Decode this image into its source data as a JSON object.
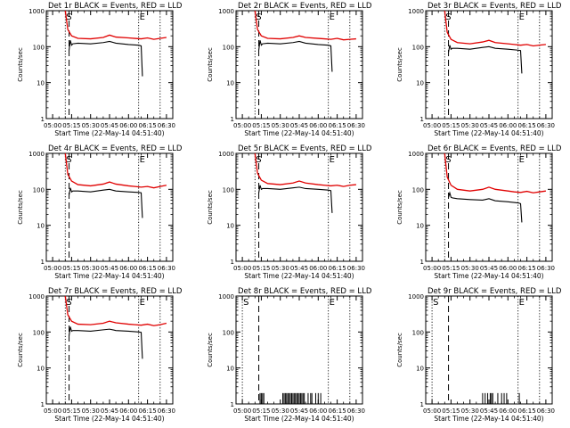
{
  "colors": {
    "events": "#000000",
    "lld": "#e00000",
    "frame": "#000000"
  },
  "shared": {
    "ylabel": "Counts/sec",
    "xlabel": "Start Time (22-May-14 04:51:40)",
    "xticks": [
      "05:00",
      "05:15",
      "05:30",
      "05:45",
      "06:00",
      "06:15",
      "06:30"
    ],
    "yticks": [
      "1",
      "10",
      "100",
      "1000"
    ],
    "start_marker": "S",
    "end_marker": "E",
    "y_scale": "log",
    "ylim": [
      1,
      1000
    ]
  },
  "chart_data": [
    {
      "type": "line",
      "title": "Det 1r BLACK = Events, RED = LLD",
      "mode": "curve",
      "x_range": [
        "04:55",
        "06:35"
      ],
      "markers": {
        "start": "05:10",
        "dash": "05:13",
        "end": "06:08",
        "end_line": "06:25"
      },
      "series": [
        {
          "label": "LLD",
          "color": "#e00000",
          "x": [
            "05:10",
            "05:12",
            "05:15",
            "05:20",
            "05:30",
            "05:40",
            "05:45",
            "05:50",
            "06:00",
            "06:05",
            "06:10",
            "06:15",
            "06:20",
            "06:25",
            "06:30"
          ],
          "y": [
            1000,
            300,
            200,
            170,
            165,
            180,
            210,
            185,
            175,
            170,
            165,
            175,
            160,
            170,
            180
          ]
        },
        {
          "label": "Events",
          "color": "#000000",
          "x": [
            "05:13",
            "05:14",
            "05:15",
            "05:16",
            "05:20",
            "05:30",
            "05:40",
            "05:45",
            "05:50",
            "06:00",
            "06:08",
            "06:10",
            "06:11"
          ],
          "y": [
            80,
            150,
            110,
            120,
            125,
            120,
            130,
            140,
            125,
            115,
            110,
            105,
            15
          ]
        }
      ]
    },
    {
      "type": "line",
      "title": "Det 2r BLACK = Events, RED = LLD",
      "mode": "curve",
      "x_range": [
        "04:55",
        "06:35"
      ],
      "markers": {
        "start": "05:10",
        "dash": "05:13",
        "end": "06:08",
        "end_line": "06:25"
      },
      "series": [
        {
          "label": "LLD",
          "color": "#e00000",
          "x": [
            "05:10",
            "05:12",
            "05:15",
            "05:20",
            "05:30",
            "05:40",
            "05:45",
            "05:50",
            "06:00",
            "06:05",
            "06:10",
            "06:15",
            "06:20",
            "06:25",
            "06:30"
          ],
          "y": [
            1000,
            300,
            200,
            170,
            165,
            180,
            200,
            180,
            170,
            165,
            160,
            170,
            155,
            160,
            165
          ]
        },
        {
          "label": "Events",
          "color": "#000000",
          "x": [
            "05:13",
            "05:14",
            "05:15",
            "05:16",
            "05:20",
            "05:30",
            "05:40",
            "05:45",
            "05:50",
            "06:00",
            "06:08",
            "06:10",
            "06:11"
          ],
          "y": [
            80,
            150,
            110,
            120,
            125,
            120,
            130,
            140,
            125,
            115,
            110,
            105,
            20
          ]
        }
      ]
    },
    {
      "type": "line",
      "title": "Det 3r BLACK = Events, RED = LLD",
      "mode": "curve",
      "x_range": [
        "04:55",
        "06:35"
      ],
      "markers": {
        "start": "05:10",
        "dash": "05:13",
        "end": "06:08",
        "end_line": "06:25"
      },
      "series": [
        {
          "label": "LLD",
          "color": "#e00000",
          "x": [
            "05:10",
            "05:12",
            "05:15",
            "05:20",
            "05:30",
            "05:40",
            "05:45",
            "05:50",
            "06:00",
            "06:05",
            "06:10",
            "06:15",
            "06:20",
            "06:25",
            "06:30"
          ],
          "y": [
            1000,
            250,
            160,
            130,
            120,
            135,
            150,
            130,
            120,
            115,
            110,
            115,
            105,
            110,
            115
          ]
        },
        {
          "label": "Events",
          "color": "#000000",
          "x": [
            "05:13",
            "05:14",
            "05:15",
            "05:16",
            "05:20",
            "05:30",
            "05:40",
            "05:45",
            "05:50",
            "06:00",
            "06:08",
            "06:10",
            "06:11"
          ],
          "y": [
            70,
            110,
            85,
            90,
            90,
            85,
            95,
            100,
            90,
            85,
            80,
            78,
            18
          ]
        }
      ]
    },
    {
      "type": "line",
      "title": "Det 4r BLACK = Events, RED = LLD",
      "mode": "curve",
      "x_range": [
        "04:55",
        "06:35"
      ],
      "markers": {
        "start": "05:10",
        "dash": "05:13",
        "end": "06:08",
        "end_line": "06:25"
      },
      "series": [
        {
          "label": "LLD",
          "color": "#e00000",
          "x": [
            "05:10",
            "05:12",
            "05:15",
            "05:20",
            "05:30",
            "05:40",
            "05:45",
            "05:50",
            "06:00",
            "06:05",
            "06:10",
            "06:15",
            "06:20",
            "06:25",
            "06:30"
          ],
          "y": [
            1000,
            260,
            170,
            135,
            125,
            140,
            160,
            140,
            125,
            120,
            115,
            120,
            110,
            120,
            130
          ]
        },
        {
          "label": "Events",
          "color": "#000000",
          "x": [
            "05:13",
            "05:14",
            "05:15",
            "05:16",
            "05:20",
            "05:30",
            "05:40",
            "05:45",
            "05:50",
            "06:00",
            "06:08",
            "06:10",
            "06:11"
          ],
          "y": [
            70,
            110,
            85,
            90,
            90,
            85,
            95,
            100,
            90,
            85,
            82,
            80,
            16
          ]
        }
      ]
    },
    {
      "type": "line",
      "title": "Det 5r BLACK = Events, RED = LLD",
      "mode": "curve",
      "x_range": [
        "04:55",
        "06:35"
      ],
      "markers": {
        "start": "05:10",
        "dash": "05:13",
        "end": "06:08",
        "end_line": "06:25"
      },
      "series": [
        {
          "label": "LLD",
          "color": "#e00000",
          "x": [
            "05:10",
            "05:12",
            "05:15",
            "05:20",
            "05:30",
            "05:40",
            "05:45",
            "05:50",
            "06:00",
            "06:05",
            "06:10",
            "06:15",
            "06:20",
            "06:25",
            "06:30"
          ],
          "y": [
            1000,
            280,
            180,
            145,
            135,
            150,
            170,
            150,
            135,
            130,
            125,
            130,
            120,
            130,
            135
          ]
        },
        {
          "label": "Events",
          "color": "#000000",
          "x": [
            "05:13",
            "05:14",
            "05:15",
            "05:16",
            "05:20",
            "05:30",
            "05:40",
            "05:45",
            "05:50",
            "06:00",
            "06:08",
            "06:10",
            "06:11"
          ],
          "y": [
            80,
            130,
            100,
            105,
            105,
            100,
            110,
            115,
            105,
            100,
            95,
            92,
            22
          ]
        }
      ]
    },
    {
      "type": "line",
      "title": "Det 6r BLACK = Events, RED = LLD",
      "mode": "curve",
      "x_range": [
        "04:55",
        "06:35"
      ],
      "markers": {
        "start": "05:10",
        "dash": "05:13",
        "end": "06:08",
        "end_line": "06:25"
      },
      "series": [
        {
          "label": "LLD",
          "color": "#e00000",
          "x": [
            "05:10",
            "05:12",
            "05:15",
            "05:20",
            "05:30",
            "05:40",
            "05:45",
            "05:50",
            "06:00",
            "06:05",
            "06:10",
            "06:15",
            "06:20",
            "06:25",
            "06:30"
          ],
          "y": [
            1000,
            220,
            130,
            100,
            90,
            100,
            115,
            100,
            90,
            85,
            82,
            88,
            80,
            85,
            90
          ]
        },
        {
          "label": "Events",
          "color": "#000000",
          "x": [
            "05:13",
            "05:14",
            "05:15",
            "05:16",
            "05:20",
            "05:30",
            "05:40",
            "05:45",
            "05:50",
            "06:00",
            "06:08",
            "06:10",
            "06:11"
          ],
          "y": [
            60,
            80,
            60,
            58,
            55,
            52,
            50,
            55,
            48,
            45,
            42,
            40,
            12
          ]
        }
      ]
    },
    {
      "type": "line",
      "title": "Det 7r BLACK = Events, RED = LLD",
      "mode": "curve",
      "x_range": [
        "04:55",
        "06:35"
      ],
      "markers": {
        "start": "05:10",
        "dash": "05:13",
        "end": "06:08",
        "end_line": "06:25"
      },
      "series": [
        {
          "label": "LLD",
          "color": "#e00000",
          "x": [
            "05:10",
            "05:12",
            "05:15",
            "05:20",
            "05:30",
            "05:40",
            "05:45",
            "05:50",
            "06:00",
            "06:05",
            "06:10",
            "06:15",
            "06:20",
            "06:25",
            "06:30"
          ],
          "y": [
            1000,
            300,
            200,
            165,
            160,
            175,
            200,
            180,
            165,
            160,
            155,
            165,
            150,
            160,
            175
          ]
        },
        {
          "label": "Events",
          "color": "#000000",
          "x": [
            "05:13",
            "05:14",
            "05:15",
            "05:16",
            "05:20",
            "05:30",
            "05:40",
            "05:45",
            "05:50",
            "06:00",
            "06:08",
            "06:10",
            "06:11"
          ],
          "y": [
            80,
            140,
            105,
            110,
            110,
            105,
            115,
            120,
            110,
            105,
            100,
            98,
            18
          ]
        }
      ]
    },
    {
      "type": "line",
      "title": "Det 8r BLACK = Events, RED = LLD",
      "mode": "spikes",
      "x_range": [
        "04:55",
        "06:35"
      ],
      "markers": {
        "start": "05:00",
        "dash": "05:13",
        "end": "06:08",
        "end_line": "06:25"
      },
      "series": [
        {
          "label": "Events",
          "color": "#000000",
          "x": [
            "05:14",
            "05:15",
            "05:16",
            "05:17",
            "05:32",
            "05:33",
            "05:34",
            "05:35",
            "05:36",
            "05:37",
            "05:38",
            "05:39",
            "05:40",
            "05:41",
            "05:42",
            "05:43",
            "05:44",
            "05:45",
            "05:46",
            "05:47",
            "05:48",
            "05:49",
            "05:52",
            "05:54",
            "05:55",
            "05:58",
            "06:00",
            "06:02"
          ],
          "y": [
            2,
            2,
            2,
            2,
            2,
            2,
            2,
            2,
            2,
            2,
            2,
            2,
            2,
            2,
            2,
            2,
            2,
            2,
            2,
            2,
            2,
            2,
            2,
            2,
            2,
            2,
            2,
            2
          ]
        }
      ]
    },
    {
      "type": "line",
      "title": "Det 9r BLACK = Events, RED = LLD",
      "mode": "spikes",
      "x_range": [
        "04:55",
        "06:35"
      ],
      "markers": {
        "start": "05:00",
        "dash": "05:13",
        "end": "06:08",
        "end_line": "06:25"
      },
      "series": [
        {
          "label": "Events",
          "color": "#000000",
          "x": [
            "05:40",
            "05:42",
            "05:44",
            "05:46",
            "05:47",
            "05:48",
            "05:52",
            "05:55",
            "05:57",
            "05:59",
            "06:09"
          ],
          "y": [
            2,
            2,
            2,
            2,
            2,
            2,
            2,
            2,
            2,
            2,
            2
          ]
        }
      ]
    }
  ]
}
